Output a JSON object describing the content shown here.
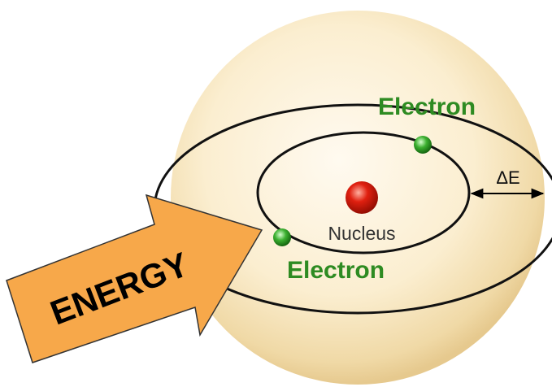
{
  "labels": {
    "electron_outer": "Electron",
    "electron_inner": "Electron",
    "nucleus": "Nucleus",
    "delta_e": "ΔE",
    "energy": "ENERGY"
  }
}
